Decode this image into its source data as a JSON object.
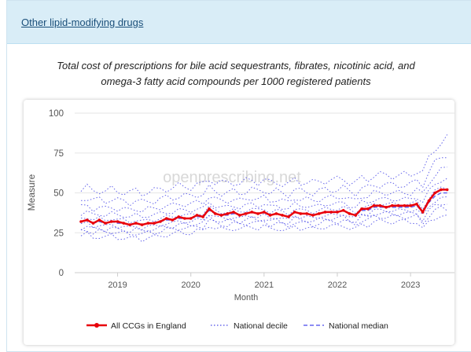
{
  "panel": {
    "link_label": "Other lipid-modifying drugs"
  },
  "chart_data": {
    "type": "line",
    "title_line1": "Total cost of prescriptions for bile acid sequestrants, fibrates, nicotinic acid, and",
    "title_line2": "omega-3 fatty acid compounds per 1000 registered patients",
    "xlabel": "Month",
    "ylabel": "Measure",
    "watermark": "openprescribing.net",
    "ylim": [
      0,
      100
    ],
    "yticks": [
      0,
      25,
      50,
      75,
      100
    ],
    "xlim": [
      2018.5,
      2023.6
    ],
    "xticks": [
      2019,
      2020,
      2021,
      2022,
      2023
    ],
    "grid": "horizontal",
    "legend_position": "bottom",
    "legend": [
      "All CCGs in England",
      "National decile",
      "National median"
    ],
    "colors": {
      "all_ccgs": "#e8000b",
      "decile": "#4a4ae8",
      "median": "#6666f0"
    },
    "months": [
      "2018-07",
      "2018-08",
      "2018-09",
      "2018-10",
      "2018-11",
      "2018-12",
      "2019-01",
      "2019-02",
      "2019-03",
      "2019-04",
      "2019-05",
      "2019-06",
      "2019-07",
      "2019-08",
      "2019-09",
      "2019-10",
      "2019-11",
      "2019-12",
      "2020-01",
      "2020-02",
      "2020-03",
      "2020-04",
      "2020-05",
      "2020-06",
      "2020-07",
      "2020-08",
      "2020-09",
      "2020-10",
      "2020-11",
      "2020-12",
      "2021-01",
      "2021-02",
      "2021-03",
      "2021-04",
      "2021-05",
      "2021-06",
      "2021-07",
      "2021-08",
      "2021-09",
      "2021-10",
      "2021-11",
      "2021-12",
      "2022-01",
      "2022-02",
      "2022-03",
      "2022-04",
      "2022-05",
      "2022-06",
      "2022-07",
      "2022-08",
      "2022-09",
      "2022-10",
      "2022-11",
      "2022-12",
      "2023-01",
      "2023-02",
      "2023-03",
      "2023-04",
      "2023-05",
      "2023-06",
      "2023-07"
    ],
    "all_ccgs": [
      32,
      33,
      31,
      33,
      31,
      32,
      32,
      31,
      30,
      31,
      30,
      31,
      31,
      32,
      34,
      33,
      35,
      34,
      34,
      36,
      35,
      40,
      37,
      36,
      37,
      38,
      36,
      37,
      38,
      37,
      38,
      36,
      37,
      36,
      35,
      38,
      37,
      37,
      36,
      37,
      38,
      38,
      38,
      39,
      37,
      36,
      40,
      40,
      42,
      42,
      41,
      42,
      42,
      42,
      42,
      43,
      38,
      45,
      50,
      52,
      52
    ],
    "median": [
      32,
      33,
      31,
      32,
      31,
      32,
      31,
      31,
      30,
      31,
      30,
      31,
      31,
      32,
      33,
      33,
      34,
      34,
      34,
      35,
      35,
      39,
      37,
      36,
      36,
      37,
      36,
      37,
      38,
      37,
      38,
      36,
      37,
      36,
      35,
      38,
      37,
      37,
      36,
      37,
      38,
      38,
      38,
      39,
      37,
      36,
      39,
      39,
      41,
      41,
      41,
      41,
      41,
      41,
      41,
      42,
      38,
      44,
      48,
      50,
      50
    ],
    "decile_offsets": [
      -9,
      -6,
      -4,
      -2,
      2,
      5,
      9,
      14,
      20
    ]
  }
}
